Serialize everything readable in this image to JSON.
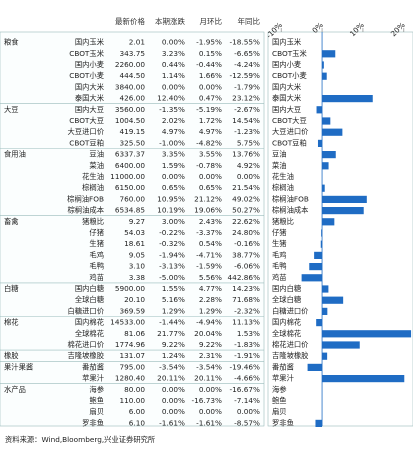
{
  "header": [
    "最新价格",
    "本期涨跌",
    "月环比",
    "年同比"
  ],
  "groups": [
    {
      "name": "粮食",
      "rows": [
        [
          "国内玉米",
          "2.01",
          "0.00%",
          "-1.95%",
          "-18.55%"
        ],
        [
          "CBOT玉米",
          "343.75",
          "3.23%",
          "0.15%",
          "-6.65%"
        ],
        [
          "国内小麦",
          "2260.00",
          "0.44%",
          "-0.44%",
          "-4.24%"
        ],
        [
          "CBOT小麦",
          "444.50",
          "1.14%",
          "1.66%",
          "-12.59%"
        ],
        [
          "国内大米",
          "3840.00",
          "0.00%",
          "0.00%",
          "-1.79%"
        ],
        [
          "泰国大米",
          "426.00",
          "12.40%",
          "0.47%",
          "23.12%"
        ]
      ]
    },
    {
      "name": "大豆",
      "rows": [
        [
          "国内大豆",
          "3560.00",
          "-1.35%",
          "-5.19%",
          "-2.67%"
        ],
        [
          "CBOT大豆",
          "1004.50",
          "2.02%",
          "1.72%",
          "14.54%"
        ],
        [
          "大豆进口价",
          "419.15",
          "4.97%",
          "4.97%",
          "-1.23%"
        ],
        [
          "CBOT豆粕",
          "325.50",
          "-1.00%",
          "-4.82%",
          "5.75%"
        ]
      ]
    },
    {
      "name": "食用油",
      "rows": [
        [
          "豆油",
          "6337.37",
          "3.35%",
          "3.55%",
          "13.76%"
        ],
        [
          "菜油",
          "6400.00",
          "1.59%",
          "-0.78%",
          "4.92%"
        ],
        [
          "花生油",
          "11000.00",
          "0.00%",
          "0.00%",
          "0.00%"
        ],
        [
          "棕榈油",
          "6150.00",
          "0.65%",
          "0.65%",
          "21.54%"
        ],
        [
          "棕榈油FOB",
          "760.00",
          "10.95%",
          "21.12%",
          "49.02%"
        ],
        [
          "棕榈油成本",
          "6534.85",
          "10.19%",
          "19.06%",
          "50.27%"
        ]
      ]
    },
    {
      "name": "畜禽",
      "rows": [
        [
          "猪粮比",
          "9.27",
          "3.00%",
          "2.43%",
          "22.62%"
        ],
        [
          "仔猪",
          "54.03",
          "-0.22%",
          "-3.37%",
          "24.80%"
        ],
        [
          "生猪",
          "18.61",
          "-0.32%",
          "0.54%",
          "-0.16%"
        ],
        [
          "毛鸡",
          "9.05",
          "-1.94%",
          "-4.71%",
          "38.77%"
        ],
        [
          "毛鸭",
          "3.10",
          "-3.13%",
          "-1.59%",
          "-6.06%"
        ],
        [
          "鸡苗",
          "3.38",
          "-5.00%",
          "5.56%",
          "442.86%"
        ]
      ]
    },
    {
      "name": "白糖",
      "rows": [
        [
          "国内白糖",
          "5900.00",
          "1.55%",
          "4.77%",
          "14.23%"
        ],
        [
          "全球白糖",
          "20.10",
          "5.16%",
          "2.28%",
          "71.68%"
        ],
        [
          "白糖进口价",
          "369.59",
          "1.29%",
          "1.29%",
          "-2.32%"
        ]
      ]
    },
    {
      "name": "棉花",
      "rows": [
        [
          "国内棉花",
          "14533.00",
          "-1.44%",
          "-4.94%",
          "11.13%"
        ],
        [
          "全球棉花",
          "81.06",
          "21.77%",
          "20.04%",
          "1.53%"
        ],
        [
          "棉花进口价",
          "1774.96",
          "9.22%",
          "9.22%",
          "-1.83%"
        ]
      ]
    },
    {
      "name": "橡胶",
      "rows": [
        [
          "吉隆坡橡胶",
          "131.07",
          "1.24%",
          "2.31%",
          "-1.91%"
        ]
      ]
    },
    {
      "name": "果汁果酱",
      "rows": [
        [
          "番茄酱",
          "795.00",
          "-3.54%",
          "-3.54%",
          "-19.46%"
        ],
        [
          "苹果汁",
          "1280.40",
          "20.11%",
          "20.11%",
          "-4.66%"
        ]
      ]
    },
    {
      "name": "水产品",
      "rows": [
        [
          "海参",
          "80.00",
          "0.00%",
          "0.00%",
          "-16.67%"
        ],
        [
          "鲍鱼",
          "110.00",
          "0.00%",
          "-16.73%",
          "-7.14%"
        ],
        [
          "扇贝",
          "6.00",
          "0.00%",
          "0.00%",
          "0.00%"
        ],
        [
          "罗非鱼",
          "6.10",
          "-1.61%",
          "-1.61%",
          "-8.57%"
        ]
      ]
    }
  ],
  "chart_data": {
    "type": "barh",
    "categories": [
      "国内玉米",
      "CBOT玉米",
      "国内小麦",
      "CBOT小麦",
      "国内大米",
      "泰国大米",
      "国内大豆",
      "CBOT大豆",
      "大豆进口价",
      "CBOT豆粕",
      "豆油",
      "菜油",
      "花生油",
      "棕榈油",
      "棕榈油FOB",
      "棕榈油成本",
      "猪粮比",
      "仔猪",
      "生猪",
      "毛鸡",
      "毛鸭",
      "鸡苗",
      "国内白糖",
      "全球白糖",
      "白糖进口价",
      "国内棉花",
      "全球棉花",
      "棉花进口价",
      "吉隆坡橡胶",
      "番茄酱",
      "苹果汁",
      "海参",
      "鲍鱼",
      "扇贝",
      "罗非鱼"
    ],
    "values": [
      0,
      3.23,
      0.44,
      1.14,
      0,
      12.4,
      -1.35,
      2.02,
      4.97,
      -1,
      3.35,
      1.59,
      0,
      0.65,
      10.95,
      10.19,
      3,
      -0.22,
      -0.32,
      -1.94,
      -3.13,
      -5,
      1.55,
      5.16,
      1.29,
      -1.44,
      21.77,
      9.22,
      1.24,
      -3.54,
      20.11,
      0,
      0,
      0,
      -1.61
    ],
    "color": "#1f6cc4",
    "xlim": [
      -12,
      22
    ],
    "xticks": [
      {
        "value": -10,
        "label": "-10%"
      },
      {
        "value": 0,
        "label": "0%"
      },
      {
        "value": 10,
        "label": "10%"
      },
      {
        "value": 20,
        "label": "20%"
      }
    ]
  },
  "footer": "资料来源：Wind,Bloomberg,兴业证券研究所"
}
